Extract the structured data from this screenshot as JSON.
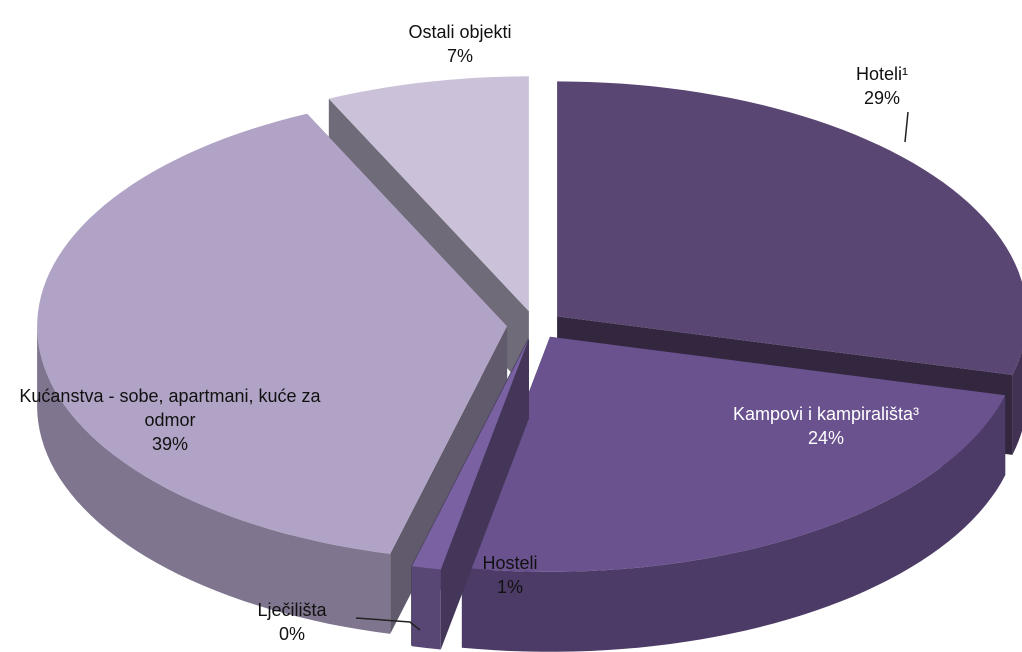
{
  "chart_data": {
    "type": "pie3d",
    "categories": [
      "Hoteli¹",
      "Kampovi i kampirališta³",
      "Hosteli",
      "Lječilišta",
      "Kućanstva - sobe, apartmani, kuće za odmor",
      "Ostali objekti"
    ],
    "values": [
      29,
      24,
      1,
      0,
      39,
      7
    ],
    "value_labels": [
      "29%",
      "24%",
      "1%",
      "0%",
      "39%",
      "7%"
    ],
    "colors": [
      "#5a4673",
      "#6a528e",
      "#7a62a2",
      "#8e7db2",
      "#b0a3c5",
      "#cbc2da"
    ]
  }
}
